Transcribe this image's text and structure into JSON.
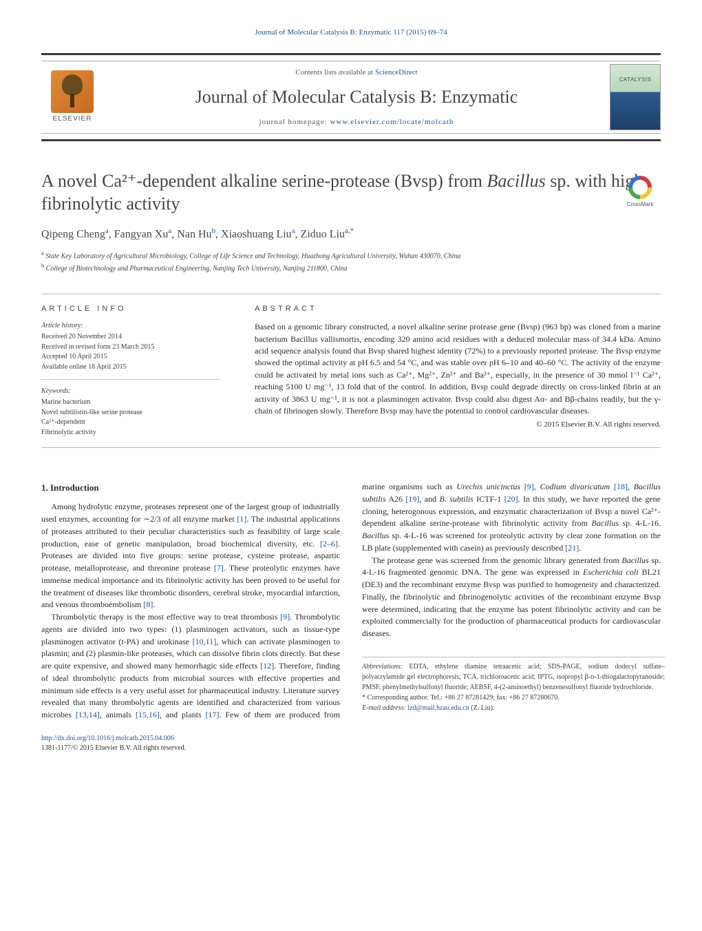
{
  "top_citation": "Journal of Molecular Catalysis B: Enzymatic 117 (2015) 69–74",
  "header": {
    "contents_prefix": "Contents lists available at ",
    "contents_link": "ScienceDirect",
    "journal_name": "Journal of Molecular Catalysis B: Enzymatic",
    "homepage_prefix": "journal homepage: ",
    "homepage_url": "www.elsevier.com/locate/molcatb",
    "elsevier": "ELSEVIER"
  },
  "crossmark": "CrossMark",
  "title_line1": "A novel Ca²⁺-dependent alkaline serine-protease (Bvsp) from ",
  "title_em": "Bacillus",
  "title_line2": " sp. with high fibrinolytic activity",
  "authors_html": "Qipeng Cheng",
  "authors": [
    {
      "name": "Qipeng Cheng",
      "aff": "a"
    },
    {
      "name": "Fangyan Xu",
      "aff": "a"
    },
    {
      "name": "Nan Hu",
      "aff": "b"
    },
    {
      "name": "Xiaoshuang Liu",
      "aff": "a"
    },
    {
      "name": "Ziduo Liu",
      "aff": "a,*"
    }
  ],
  "affiliations": {
    "a": "State Key Laboratory of Agricultural Microbiology, College of Life Science and Technology, Huazhong Agricultural University, Wuhan 430070, China",
    "b": "College of Biotechnology and Pharmaceutical Engineering, Nanjing Tech University, Nanjing 211800, China"
  },
  "article_info": {
    "heading": "article info",
    "history_label": "Article history:",
    "received": "Received 20 November 2014",
    "revised": "Received in revised form 23 March 2015",
    "accepted": "Accepted 10 April 2015",
    "online": "Available online 18 April 2015",
    "keywords_label": "Keywords:",
    "kw1": "Marine bacterium",
    "kw2": "Novel subtilistin-like serine protease",
    "kw3": "Ca²⁺-dependent",
    "kw4": "Fibrinolytic activity"
  },
  "abstract": {
    "heading": "abstract",
    "text": "Based on a genomic library constructed, a novel alkaline serine protease gene (Bvsp) (963 bp) was cloned from a marine bacterium Bacillus vallismortis, encoding 320 amino acid residues with a deduced molecular mass of 34.4 kDa. Amino acid sequence analysis found that Bvsp shared highest identity (72%) to a previously reported protease. The Bvsp enzyme showed the optimal activity at pH 6.5 and 54 °C, and was stable over pH 6–10 and 40–60 °C. The activity of the enzyme could be activated by metal ions such as Ca²⁺, Mg²⁺, Zn²⁺ and Ba²⁺, especially, in the presence of 30 mmol l⁻¹ Ca²⁺, reaching 5100 U mg⁻¹, 13 fold that of the control. In addition, Bvsp could degrade directly on cross-linked fibrin at an activity of 3863 U mg⁻¹, it is not a plasminogen activator. Bvsp could also digest Aα- and Bβ-chains readily, but the γ-chain of fibrinogen slowly. Therefore Bvsp may have the potential to control cardiovascular diseases.",
    "copyright": "© 2015 Elsevier B.V. All rights reserved."
  },
  "intro": {
    "heading": "1. Introduction",
    "p1a": "Among hydrolytic enzyme, proteases represent one of the largest group of industrially used enzymes, accounting for ∼2/3 of all enzyme market ",
    "r1": "[1]",
    "p1b": ". The industrial applications of proteases attributed to their peculiar characteristics such as feasibility of large scale production, ease of genetic manipulation, broad biochemical diversity, etc. ",
    "r26": "[2–6]",
    "p1c": ". Proteases are divided into five groups: serine protease, cysteine protease, aspartic protease, metalloprotease, and threonine protease ",
    "r7": "[7]",
    "p1d": ". These proteolytic enzymes have immense medical importance and its fibrinolytic activity has been proved to be useful for the treatment of diseases like thrombotic disorders, cerebral stroke, myocardial infarction, and venous thromboembolism ",
    "r8": "[8]",
    "p1e": ".",
    "p2a": "Thrombolytic therapy is the most effective way to treat thrombosis ",
    "r9": "[9]",
    "p2b": ". Thrombolytic agents are divided into two types: (1) plasminogen activators, such as tissue-type plasminogen activator (t-PA) and urokinase ",
    "r1011": "[10,11]",
    "p2c": ", which can activate plasminogen ",
    "p3a": "to plasmin; and (2) plasmin-like proteases, which can dissolve fibrin clots directly. But these are quite expensive, and showed many hemorrhagic side effects ",
    "r12": "[12]",
    "p3b": ". Therefore, finding of ideal thrombolytic products from microbial sources with effective properties and minimum side effects is a very useful asset for pharmaceutical industry. Literature survey revealed that many thrombolytic agents are identified and characterized from various microbes ",
    "r1314": "[13,14]",
    "p3c": ", animals ",
    "r1516": "[15,16]",
    "p3d": ", and plants ",
    "r17": "[17]",
    "p3e": ". Few of them are produced from marine organisms such as ",
    "em1": "Urechis unicinctus",
    "p3f": " ",
    "r9b": "[9]",
    "p3g": ", ",
    "em2": "Codium divaricatum",
    "p3h": " ",
    "r18": "[18]",
    "p3i": ", ",
    "em3": "Bacillus subtilis",
    "p3j": " A26 ",
    "r19": "[19]",
    "p3k": ", and ",
    "em4": "B. subtilis",
    "p3l": " ICTF-1 ",
    "r20": "[20]",
    "p3m": ". In this study, we have reported the gene cloning, heterogonous expression, and enzymatic characterization of Bvsp a novel Ca²⁺-dependent alkaline serine-protease with fibrinolytic activity from ",
    "em5": "Bacillus",
    "p3n": " sp. 4-L-16. ",
    "em6": "Bacillus",
    "p3o": " sp. 4-L-16 was screened for proteolytic activity by clear zone formation on the LB plate (supplemented with casein) as previously described ",
    "r21": "[21]",
    "p3p": ".",
    "p4a": "The protease gene was screened from the genomic library generated from ",
    "em7": "Bacillus",
    "p4b": " sp. 4-L-16 fragmented genomic DNA. The gene was expressed in ",
    "em8": "Escherichia coli",
    "p4c": " BL21 (DE3) and the recombinant enzyme Bvsp was purified to homogeneity and characterized. Finally, the fibrinolytic and fibrinogenolytic activities of the recombinant enzyme Bvsp were determined, indicating that the enzyme has potent fibrinolytic activity and can be exploited commercially for the production of pharmaceutical products for cardiovascular diseases."
  },
  "footnotes": {
    "abbrev_label": "Abbreviations:",
    "abbrev_text": " EDTA, ethylene diamine tetraacetic acid; SDS-PAGE, sodium dodecyl sulfate–polyacrylamide gel electrophoresis; TCA, trichloroacetic acid; IPTG, isopropyl β-ᴅ-1-thiogalactopyranoside; PMSF, phenylmethylsulfonyl fluoride; AEBSF, 4-(2-aminoethyl) benzenesulfonyl fluoride hydrochloride.",
    "corr_label": "* Corresponding author. ",
    "corr_text": "Tel.: +86 27 87281429; fax: +86 27 87280670.",
    "email_label": "E-mail address: ",
    "email": "lzd@mail.hzau.edu.cn",
    "email_who": " (Z. Liu)."
  },
  "doi": {
    "url": "http://dx.doi.org/10.1016/j.molcatb.2015.04.006",
    "issn_copy": "1381-1177/© 2015 Elsevier B.V. All rights reserved."
  },
  "colors": {
    "link": "#1a5490",
    "text": "#2a2a2a",
    "rule": "#bbbbbb",
    "header_rule": "#3a3a3a"
  }
}
